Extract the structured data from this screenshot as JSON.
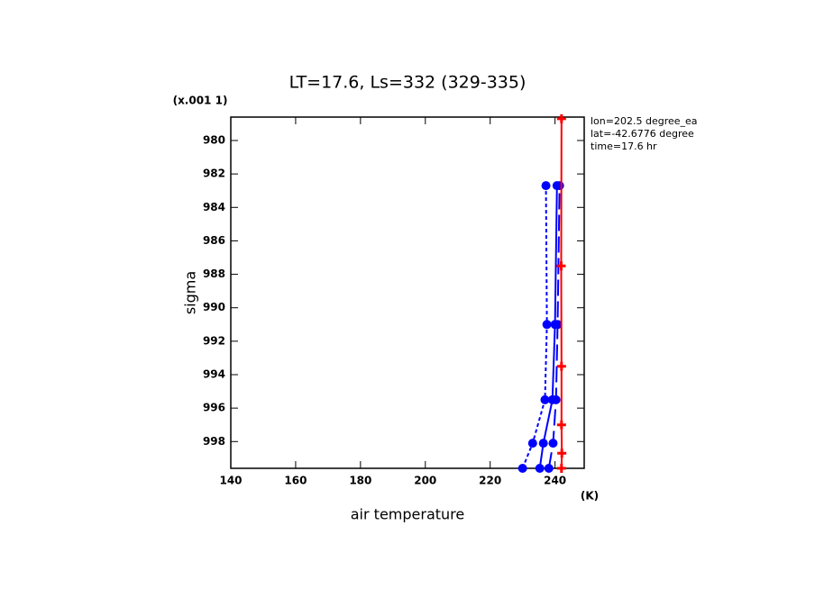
{
  "chart_data": {
    "type": "line",
    "title": "LT=17.6, Ls=332 (329-335)",
    "y_scale_label": "(x.001 1)",
    "y_label": "sigma",
    "x_label": "air temperature",
    "x_units": "(K)",
    "annotations": [
      "lon=202.5 degree_ea",
      "lat=-42.6776 degree",
      "time=17.6 hr"
    ],
    "xlim": [
      140,
      249
    ],
    "xticks": [
      140,
      160,
      180,
      200,
      220,
      240
    ],
    "ylim": [
      999.6,
      978.6
    ],
    "yticks": [
      980,
      982,
      984,
      986,
      988,
      990,
      992,
      994,
      996,
      998
    ],
    "series": [
      {
        "color": "#0000ff",
        "dash": "short",
        "marker": "circle",
        "x": [
          230.0,
          233.1,
          236.9,
          237.5,
          237.2
        ],
        "y": [
          999.6,
          998.1,
          995.5,
          991.0,
          982.7
        ]
      },
      {
        "color": "#0000ff",
        "dash": "solid",
        "marker": "circle",
        "x": [
          235.3,
          236.4,
          239.2,
          240.0,
          240.6
        ],
        "y": [
          999.6,
          998.1,
          995.5,
          991.0,
          982.7
        ]
      },
      {
        "color": "#0000ff",
        "dash": "long",
        "marker": "circle",
        "x": [
          238.1,
          239.4,
          240.3,
          240.8,
          241.4
        ],
        "y": [
          999.6,
          998.1,
          995.5,
          991.0,
          982.7
        ]
      },
      {
        "color": "#ff0000",
        "dash": "solid",
        "marker": "plus",
        "x": [
          242.0,
          242.1,
          242.0,
          242.0,
          241.9,
          242.0
        ],
        "y": [
          999.6,
          998.7,
          997.0,
          993.5,
          987.5,
          978.7
        ]
      }
    ]
  }
}
